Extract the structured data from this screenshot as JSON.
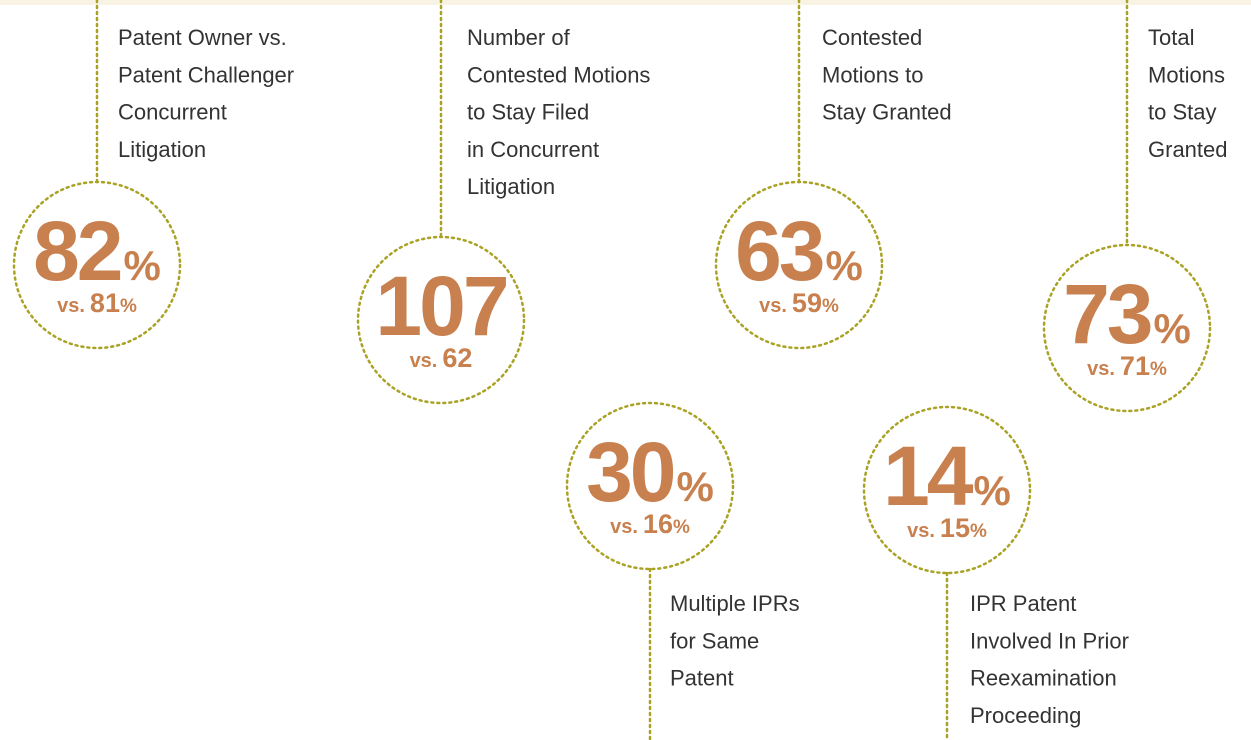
{
  "items": [
    {
      "label": [
        "Patent Owner vs.",
        "Patent Challenger",
        "Concurrent",
        "Litigation"
      ],
      "value": 82,
      "unit": "%",
      "prefix": "vs.",
      "compare": 81,
      "compare_unit": "%"
    },
    {
      "label": [
        "Number of",
        "Contested Motions",
        "to Stay Filed",
        "in Concurrent",
        "Litigation"
      ],
      "value": 107,
      "prefix": "vs.",
      "compare": 62
    },
    {
      "label": [
        "Contested",
        "Motions to",
        "Stay Granted"
      ],
      "value": 63,
      "unit": "%",
      "prefix": "vs.",
      "compare": 59,
      "compare_unit": "%"
    },
    {
      "label": [
        "Total",
        "Motions",
        "to Stay",
        "Granted"
      ],
      "value": 73,
      "unit": "%",
      "prefix": "vs.",
      "compare": 71,
      "compare_unit": "%"
    },
    {
      "label": [
        "Multiple IPRs",
        "for Same",
        "Patent"
      ],
      "value": 30,
      "unit": "%",
      "prefix": "vs.",
      "compare": 16,
      "compare_unit": "%"
    },
    {
      "label": [
        "IPR Patent",
        "Involved In Prior",
        "Reexamination",
        "Proceeding"
      ],
      "value": 14,
      "unit": "%",
      "prefix": "vs.",
      "compare": 15,
      "compare_unit": "%"
    }
  ]
}
